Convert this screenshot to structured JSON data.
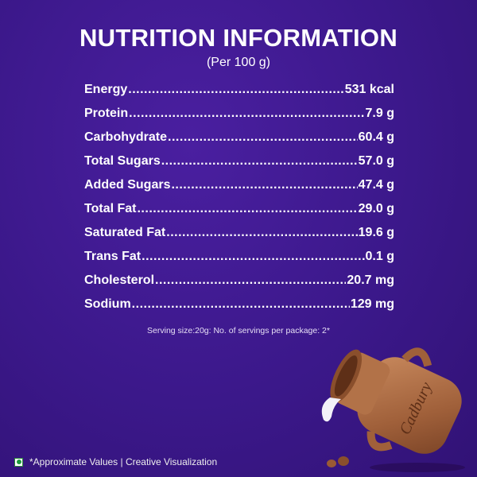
{
  "title": "NUTRITION INFORMATION",
  "subtitle": "(Per 100 g)",
  "nutrients": [
    {
      "label": "Energy",
      "value": "531 kcal"
    },
    {
      "label": "Protein",
      "value": "7.9 g"
    },
    {
      "label": "Carbohydrate",
      "value": "60.4 g"
    },
    {
      "label": "Total Sugars",
      "value": "57.0 g"
    },
    {
      "label": "Added Sugars",
      "value": "47.4 g"
    },
    {
      "label": "Total Fat",
      "value": "29.0 g"
    },
    {
      "label": "Saturated Fat",
      "value": "19.6 g"
    },
    {
      "label": "Trans Fat",
      "value": "0.1 g"
    },
    {
      "label": "Cholesterol",
      "value": "20.7 mg"
    },
    {
      "label": "Sodium",
      "value": "129 mg"
    }
  ],
  "serving_note": "Serving size:20g: No. of servings per package: 2*",
  "footer": "*Approximate Values | Creative Visualization",
  "brand": "Cadbury",
  "colors": {
    "background": "#3b188a",
    "jar": "#a0603a",
    "veg_mark": "#1a9a3a"
  }
}
